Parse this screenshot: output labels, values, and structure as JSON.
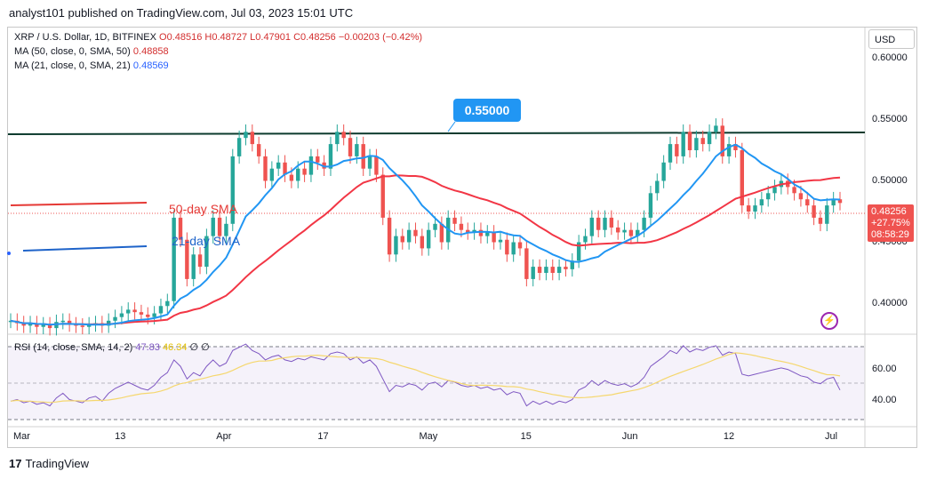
{
  "header": {
    "publisher": "analyst101 published on TradingView.com, Jul 03, 2023 15:01 UTC"
  },
  "legend": {
    "symbol": "XRP / U.S. Dollar, 1D, BITFINEX",
    "ohlc": "O0.48516 H0.48727 L0.47901 C0.48256 −0.00203 (−0.42%)",
    "ma50_label": "MA (50, close, 0, SMA, 50)",
    "ma50_value": "0.48858",
    "ma21_label": "MA (21, close, 0, SMA, 21)",
    "ma21_value": "0.48569",
    "rsi_label": "RSI (14, close, SMA, 14, 2)",
    "rsi_value": "47.83",
    "rsi_sma_value": "46.34",
    "rsi_extra": "∅ ∅"
  },
  "currency_button": "USD",
  "price_axis": [
    {
      "label": "0.60000",
      "value": 0.6
    },
    {
      "label": "0.55000",
      "value": 0.55
    },
    {
      "label": "0.50000",
      "value": 0.5
    },
    {
      "label": "0.45000",
      "value": 0.45
    },
    {
      "label": "0.40000",
      "value": 0.4
    }
  ],
  "rsi_axis": [
    {
      "label": "60.00",
      "value": 60
    },
    {
      "label": "40.00",
      "value": 40
    }
  ],
  "time_axis": [
    "Mar",
    "13",
    "Apr",
    "17",
    "May",
    "15",
    "Jun",
    "12",
    "Jul"
  ],
  "current_price": {
    "price": "0.48256",
    "change": "+27.75%",
    "countdown": "08:58:29"
  },
  "resistance_callout": "0.55000",
  "annotations": {
    "sma50": "50-day SMA",
    "sma21": "21-day SMA"
  },
  "footer": {
    "brand": "TradingView",
    "logo_text": "17"
  },
  "colors": {
    "up": "#26a69a",
    "down": "#ef5350",
    "ma50": "#f23645",
    "ma21": "#2196f3",
    "rsi": "#7e57c2",
    "rsi_sma": "#f5d76e",
    "resistance": "#0d4f3c"
  },
  "chart_data": {
    "type": "candlestick",
    "price_range": [
      0.375,
      0.625
    ],
    "rsi_range": [
      25,
      80
    ],
    "resistance": 0.55,
    "series_close": [
      0.386,
      0.384,
      0.382,
      0.384,
      0.381,
      0.383,
      0.38,
      0.385,
      0.386,
      0.383,
      0.382,
      0.381,
      0.383,
      0.384,
      0.382,
      0.386,
      0.389,
      0.392,
      0.395,
      0.393,
      0.391,
      0.389,
      0.392,
      0.398,
      0.402,
      0.47,
      0.452,
      0.42,
      0.44,
      0.43,
      0.455,
      0.47,
      0.455,
      0.465,
      0.52,
      0.535,
      0.54,
      0.53,
      0.52,
      0.5,
      0.51,
      0.515,
      0.505,
      0.5,
      0.51,
      0.505,
      0.52,
      0.515,
      0.51,
      0.53,
      0.54,
      0.535,
      0.52,
      0.53,
      0.51,
      0.52,
      0.505,
      0.47,
      0.44,
      0.455,
      0.45,
      0.46,
      0.455,
      0.445,
      0.46,
      0.465,
      0.45,
      0.47,
      0.465,
      0.46,
      0.458,
      0.46,
      0.455,
      0.458,
      0.45,
      0.452,
      0.44,
      0.45,
      0.445,
      0.42,
      0.43,
      0.425,
      0.43,
      0.425,
      0.43,
      0.428,
      0.435,
      0.45,
      0.455,
      0.47,
      0.46,
      0.47,
      0.462,
      0.458,
      0.46,
      0.455,
      0.46,
      0.47,
      0.49,
      0.5,
      0.515,
      0.53,
      0.52,
      0.54,
      0.525,
      0.535,
      0.53,
      0.54,
      0.545,
      0.52,
      0.53,
      0.525,
      0.48,
      0.475,
      0.48,
      0.485,
      0.49,
      0.495,
      0.5,
      0.495,
      0.49,
      0.485,
      0.48,
      0.47,
      0.465,
      0.48,
      0.485,
      0.482
    ],
    "rsi": [
      40,
      41,
      39,
      40,
      38,
      39,
      37,
      42,
      45,
      41,
      40,
      39,
      42,
      43,
      40,
      45,
      48,
      50,
      52,
      50,
      48,
      47,
      50,
      55,
      58,
      66,
      62,
      54,
      58,
      56,
      62,
      66,
      62,
      64,
      72,
      74,
      76,
      72,
      70,
      66,
      68,
      69,
      66,
      65,
      67,
      66,
      68,
      67,
      66,
      70,
      71,
      70,
      66,
      68,
      64,
      66,
      62,
      54,
      46,
      50,
      49,
      51,
      50,
      47,
      51,
      52,
      49,
      53,
      52,
      50,
      49,
      50,
      48,
      49,
      47,
      48,
      44,
      46,
      45,
      37,
      40,
      38,
      40,
      38,
      40,
      39,
      41,
      47,
      49,
      53,
      50,
      53,
      51,
      50,
      51,
      49,
      51,
      55,
      62,
      65,
      68,
      72,
      70,
      75,
      71,
      73,
      72,
      74,
      75,
      69,
      71,
      70,
      57,
      56,
      57,
      58,
      59,
      60,
      61,
      60,
      58,
      56,
      55,
      52,
      51,
      54,
      55,
      47
    ]
  }
}
